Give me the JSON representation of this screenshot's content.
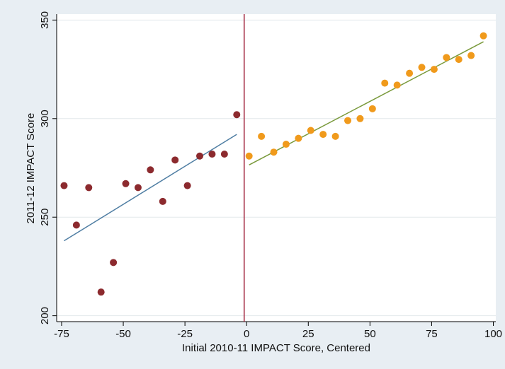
{
  "chart_data": {
    "type": "scatter",
    "xlabel": "Initial 2010-11 IMPACT Score, Centered",
    "ylabel": "2011-12 IMPACT Score",
    "xlim": [
      -77,
      101
    ],
    "ylim": [
      197,
      353
    ],
    "xticks": [
      -75,
      -50,
      -25,
      0,
      25,
      50,
      75,
      100
    ],
    "yticks": [
      200,
      250,
      300,
      350
    ],
    "xtick_labels": [
      "-75",
      "-50",
      "-25",
      "0",
      "25",
      "50",
      "75",
      "100"
    ],
    "ytick_labels": [
      "200",
      "250",
      "300",
      "350"
    ],
    "grid": "horizontal",
    "cutoff_line": {
      "x": -1,
      "color": "#a0203a"
    },
    "series": [
      {
        "color": "#8c2a2e",
        "x": [
          -74,
          -69,
          -64,
          -59,
          -54,
          -49,
          -44,
          -39,
          -34,
          -29,
          -24,
          -19,
          -14,
          -9,
          -4
        ],
        "y": [
          266,
          246,
          265,
          212,
          227,
          267,
          265,
          274,
          258,
          279,
          266,
          281,
          282,
          282,
          302
        ]
      },
      {
        "color": "#f09a1c",
        "x": [
          1,
          6,
          11,
          16,
          21,
          26,
          31,
          36,
          41,
          46,
          51,
          56,
          61,
          66,
          71,
          76,
          81,
          86,
          91,
          96
        ],
        "y": [
          281,
          291,
          283,
          287,
          290,
          294,
          292,
          291,
          299,
          300,
          305,
          318,
          317,
          323,
          326,
          325,
          331,
          330,
          332,
          342
        ]
      }
    ],
    "fit_lines": [
      {
        "color": "#4f7ea3",
        "x": [
          -74,
          -4
        ],
        "y": [
          238,
          292
        ]
      },
      {
        "color": "#7a9a3c",
        "x": [
          1,
          96
        ],
        "y": [
          276.5,
          339
        ]
      }
    ]
  }
}
